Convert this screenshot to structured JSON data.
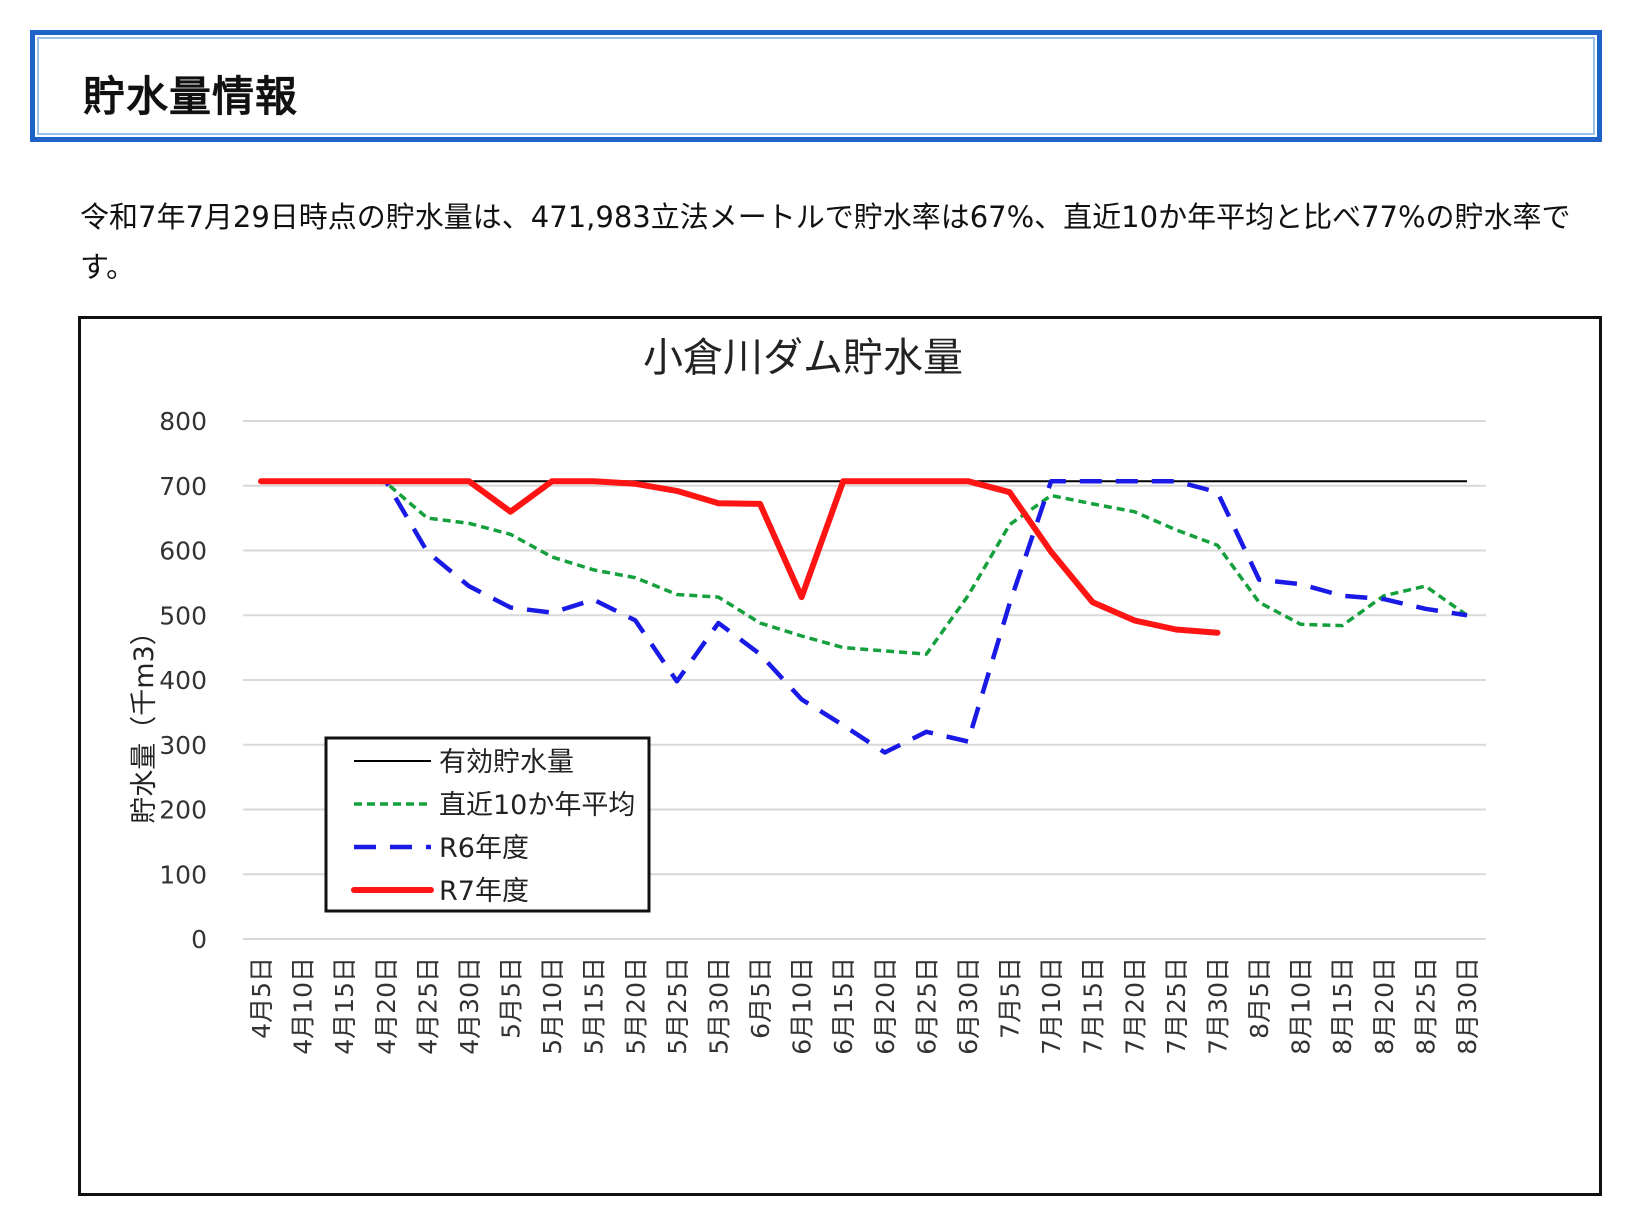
{
  "page": {
    "heading": "貯水量情報",
    "intro": "令和7年7月29日時点の貯水量は、471,983立法メートルで貯水率は67%、直近10か年平均と比べ77%の貯水率です。"
  },
  "chart_data": {
    "type": "line",
    "title": "小倉川ダム貯水量",
    "ylabel": "貯水量（千m3）",
    "xlabel": "",
    "ylim": [
      0,
      800
    ],
    "yticks": [
      0,
      100,
      200,
      300,
      400,
      500,
      600,
      700,
      800
    ],
    "grid": true,
    "legend_position": "bottom-left",
    "categories": [
      "4月5日",
      "4月10日",
      "4月15日",
      "4月20日",
      "4月25日",
      "4月30日",
      "5月5日",
      "5月10日",
      "5月15日",
      "5月20日",
      "5月25日",
      "5月30日",
      "6月5日",
      "6月10日",
      "6月15日",
      "6月20日",
      "6月25日",
      "6月30日",
      "7月5日",
      "7月10日",
      "7月15日",
      "7月20日",
      "7月25日",
      "7月30日",
      "8月5日",
      "8月10日",
      "8月15日",
      "8月20日",
      "8月25日",
      "8月30日"
    ],
    "series": [
      {
        "name": "有効貯水量",
        "color": "#000000",
        "style": "solid",
        "values": [
          707,
          707,
          707,
          707,
          707,
          707,
          707,
          707,
          707,
          707,
          707,
          707,
          707,
          707,
          707,
          707,
          707,
          707,
          707,
          707,
          707,
          707,
          707,
          707,
          707,
          707,
          707,
          707,
          707,
          707
        ]
      },
      {
        "name": "直近10か年平均",
        "color": "#14a03c",
        "style": "dotted",
        "values": [
          707,
          707,
          707,
          705,
          650,
          642,
          625,
          590,
          570,
          558,
          532,
          528,
          488,
          468,
          450,
          445,
          440,
          530,
          640,
          685,
          672,
          660,
          632,
          608,
          520,
          486,
          484,
          530,
          545,
          500
        ]
      },
      {
        "name": "R6年度",
        "color": "#1a1ae6",
        "style": "dashed",
        "values": [
          707,
          707,
          707,
          707,
          598,
          545,
          512,
          504,
          524,
          492,
          398,
          488,
          440,
          370,
          330,
          288,
          320,
          305,
          518,
          707,
          707,
          707,
          707,
          690,
          555,
          548,
          530,
          525,
          510,
          500
        ]
      },
      {
        "name": "R7年度",
        "color": "#ff1414",
        "style": "solid-thick",
        "values": [
          707,
          707,
          707,
          707,
          707,
          707,
          660,
          707,
          707,
          703,
          692,
          673,
          672,
          528,
          707,
          707,
          707,
          707,
          690,
          598,
          520,
          492,
          478,
          473,
          null,
          null,
          null,
          null,
          null,
          null
        ]
      }
    ]
  }
}
